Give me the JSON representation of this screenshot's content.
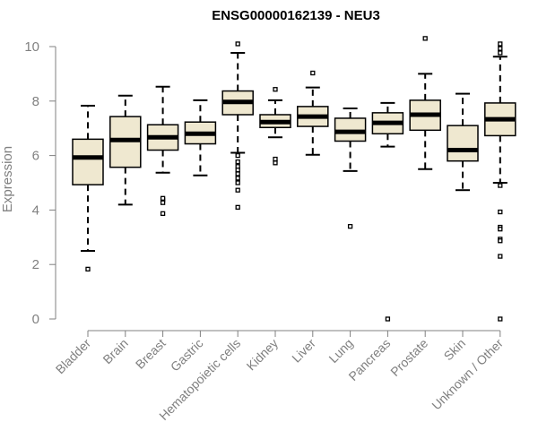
{
  "chart_data": {
    "type": "boxplot",
    "title": "ENSG00000162139 - NEU3",
    "xlabel": "",
    "ylabel": "Expression",
    "ylim": [
      0,
      10
    ],
    "yticks": [
      0,
      2,
      4,
      6,
      8,
      10
    ],
    "grid": false,
    "legend": "none",
    "colors": {
      "box_fill": "#efe8d0",
      "stroke": "#000000",
      "axis_text": "#808080",
      "axis_line": "#808080"
    },
    "categories": [
      "Bladder",
      "Brain",
      "Breast",
      "Gastric",
      "Hematopoietic cells",
      "Kidney",
      "Liver",
      "Lung",
      "Pancreas",
      "Prostate",
      "Skin",
      "Unknown / Other"
    ],
    "boxes": [
      {
        "category": "Bladder",
        "whisker_low": 2.5,
        "q1": 4.93,
        "median": 5.93,
        "q3": 6.6,
        "whisker_high": 7.83,
        "outliers": [
          1.83
        ]
      },
      {
        "category": "Brain",
        "whisker_low": 4.2,
        "q1": 5.57,
        "median": 6.57,
        "q3": 7.43,
        "whisker_high": 8.2,
        "outliers": []
      },
      {
        "category": "Breast",
        "whisker_low": 5.37,
        "q1": 6.2,
        "median": 6.67,
        "q3": 7.13,
        "whisker_high": 8.53,
        "outliers": [
          4.37,
          4.43,
          4.27,
          3.87
        ]
      },
      {
        "category": "Gastric",
        "whisker_low": 5.27,
        "q1": 6.43,
        "median": 6.8,
        "q3": 7.23,
        "whisker_high": 8.03,
        "outliers": []
      },
      {
        "category": "Hematopoietic cells",
        "whisker_low": 6.1,
        "q1": 7.5,
        "median": 7.97,
        "q3": 8.37,
        "whisker_high": 9.77,
        "outliers": [
          10.1,
          6.0,
          5.77,
          5.6,
          5.47,
          5.33,
          5.17,
          5.0,
          4.73,
          4.1
        ]
      },
      {
        "category": "Kidney",
        "whisker_low": 6.67,
        "q1": 7.03,
        "median": 7.23,
        "q3": 7.5,
        "whisker_high": 8.03,
        "outliers": [
          8.43,
          5.87,
          5.73
        ]
      },
      {
        "category": "Liver",
        "whisker_low": 6.03,
        "q1": 7.07,
        "median": 7.43,
        "q3": 7.8,
        "whisker_high": 8.5,
        "outliers": [
          9.03
        ]
      },
      {
        "category": "Lung",
        "whisker_low": 5.43,
        "q1": 6.53,
        "median": 6.87,
        "q3": 7.37,
        "whisker_high": 7.73,
        "outliers": [
          3.4
        ]
      },
      {
        "category": "Pancreas",
        "whisker_low": 6.33,
        "q1": 6.8,
        "median": 7.2,
        "q3": 7.57,
        "whisker_high": 7.93,
        "outliers": [
          0.0
        ]
      },
      {
        "category": "Prostate",
        "whisker_low": 5.5,
        "q1": 6.93,
        "median": 7.5,
        "q3": 8.03,
        "whisker_high": 9.0,
        "outliers": [
          10.3
        ]
      },
      {
        "category": "Skin",
        "whisker_low": 4.73,
        "q1": 5.8,
        "median": 6.2,
        "q3": 7.1,
        "whisker_high": 8.27,
        "outliers": []
      },
      {
        "category": "Unknown / Other",
        "whisker_low": 5.0,
        "q1": 6.73,
        "median": 7.33,
        "q3": 7.93,
        "whisker_high": 9.63,
        "outliers": [
          10.1,
          9.93,
          9.77,
          4.9,
          3.93,
          3.37,
          3.3,
          2.93,
          2.87,
          2.3,
          0.0
        ]
      }
    ]
  }
}
